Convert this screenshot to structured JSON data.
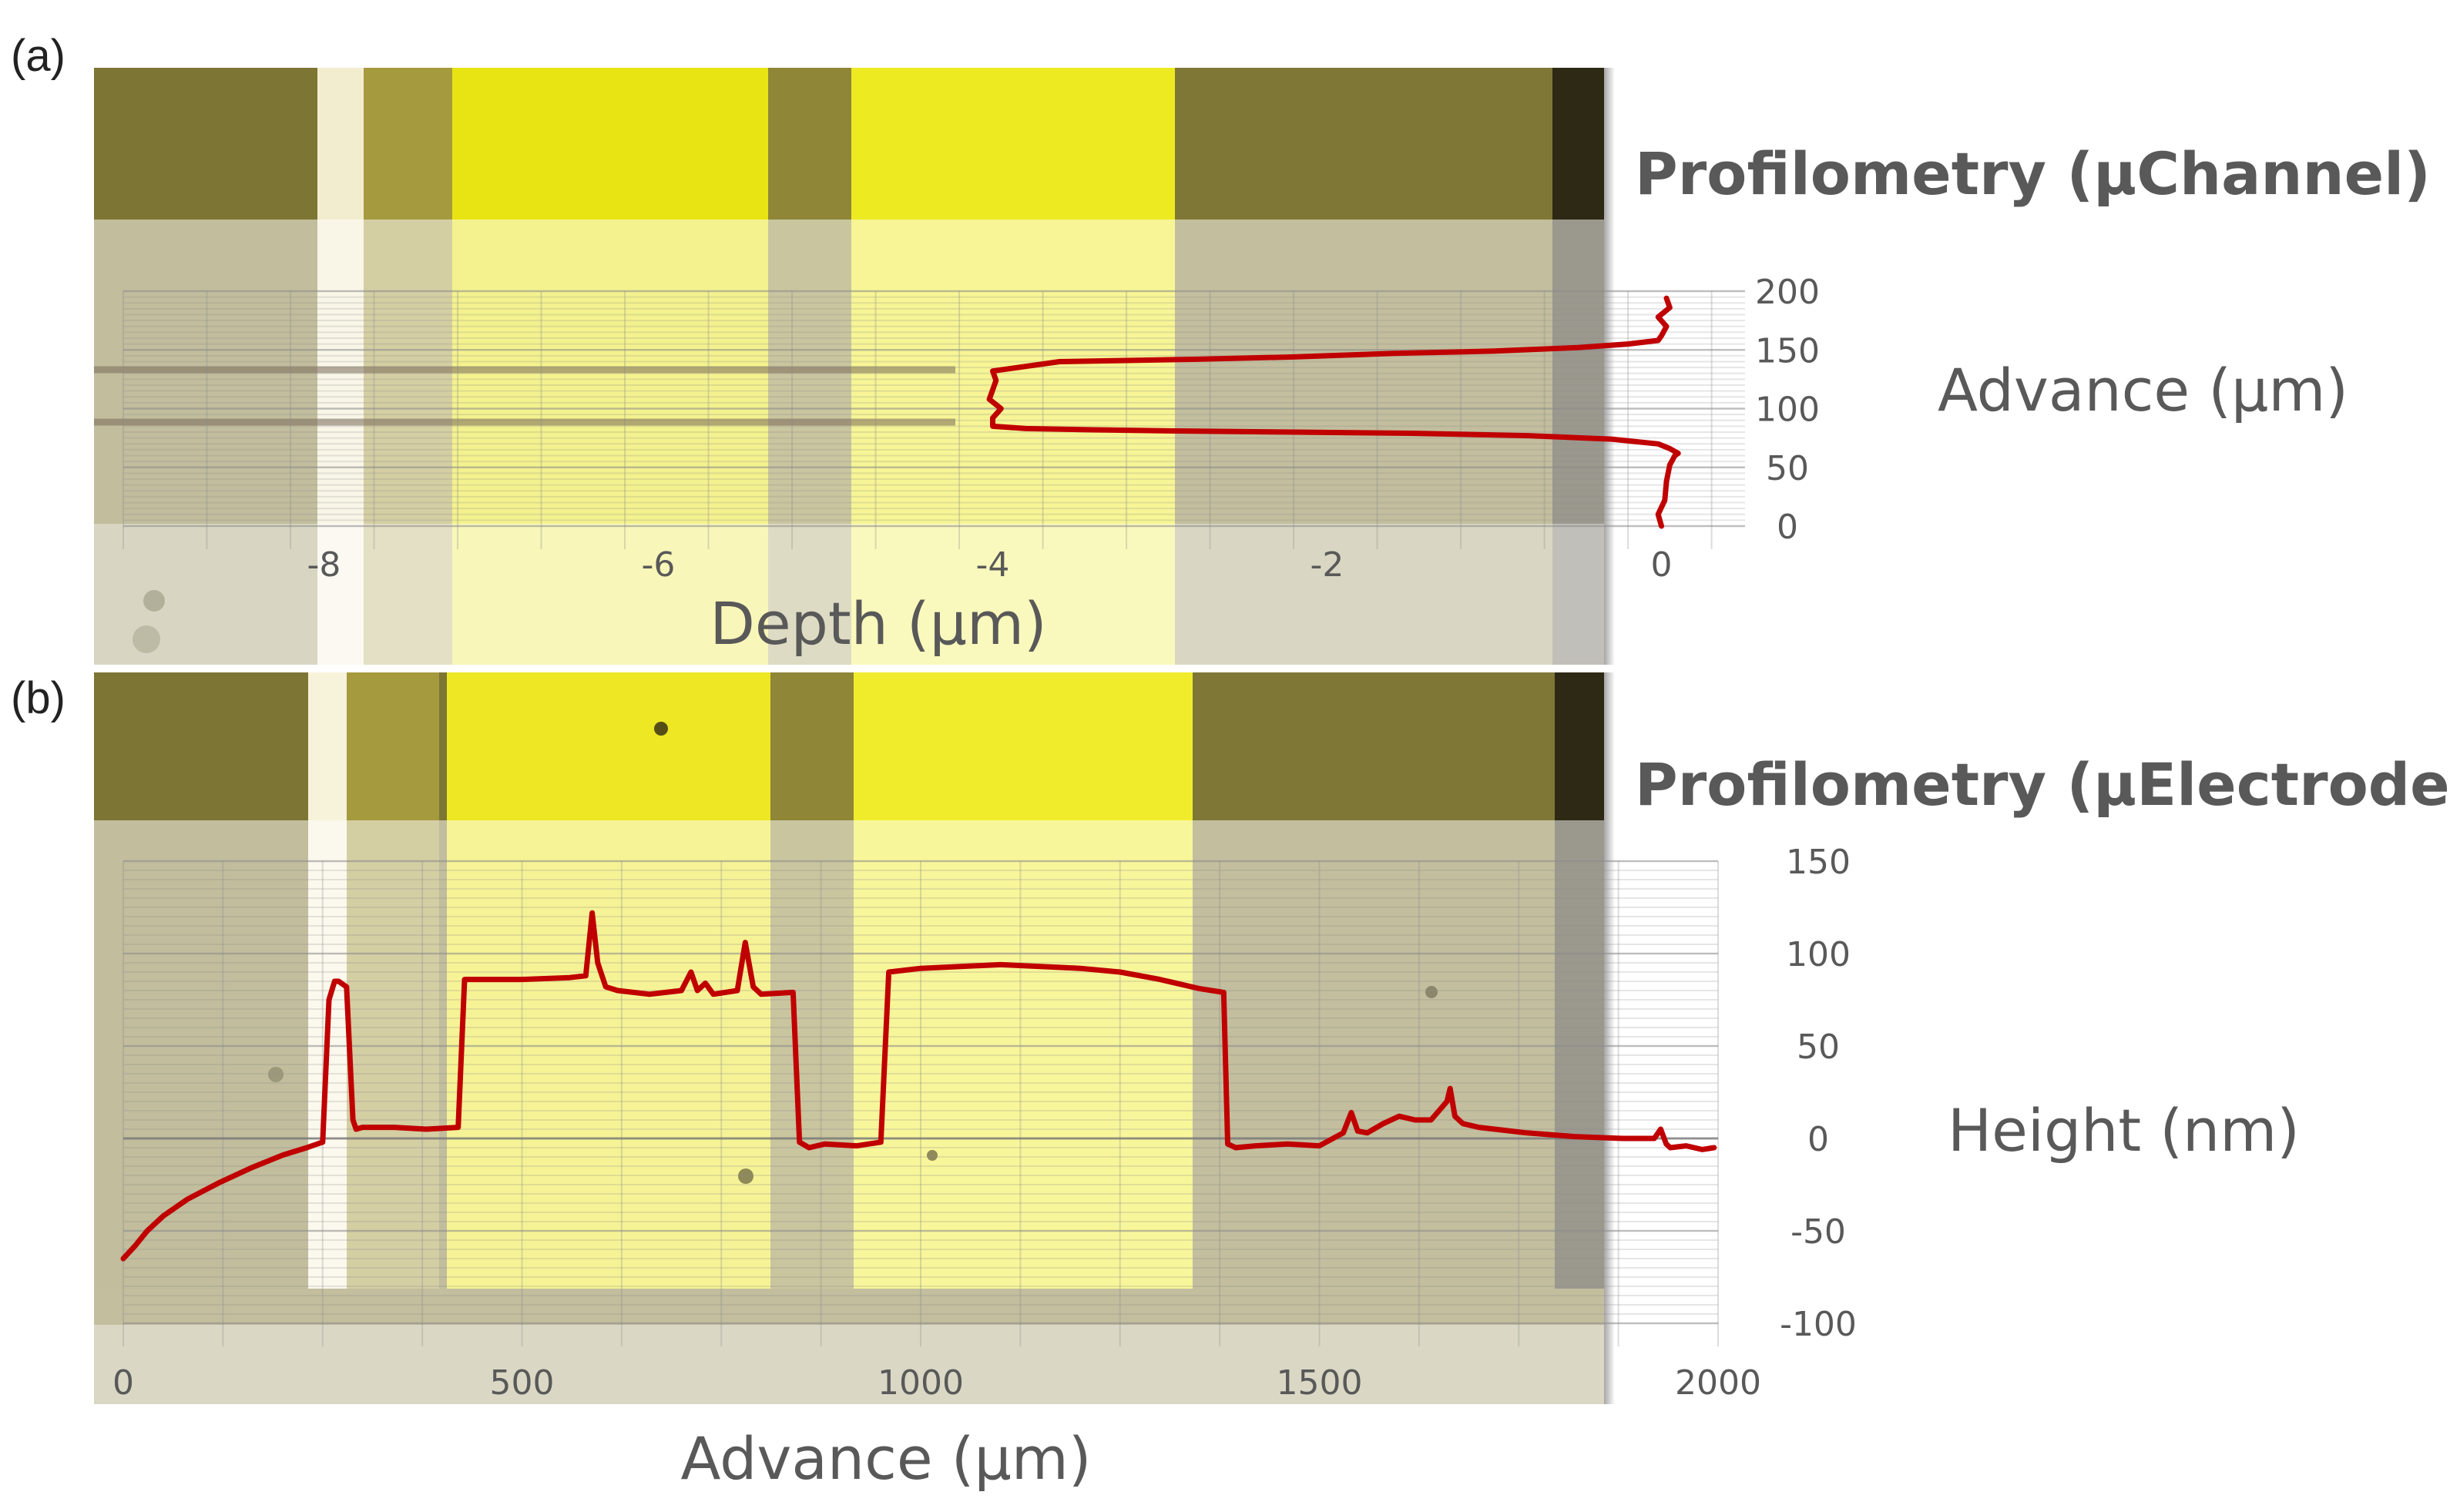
{
  "panels": {
    "a_label": "(a)",
    "b_label": "(b)"
  },
  "colors": {
    "trace": "#c00000",
    "micrograph_dark": "#7d7533",
    "micrograph_yellow": "#e8e414",
    "overlay_white": "#ffffff",
    "label_grey": "#595959"
  },
  "chart_data": [
    {
      "type": "line",
      "title": "Profilometry (µChannel)",
      "xlabel": "Depth (µm)",
      "ylabel": "Advance (µm)",
      "xlim": [
        -9.2,
        0.5
      ],
      "ylim": [
        0,
        200
      ],
      "x_ticks": [
        "-8",
        "-6",
        "-4",
        "-2",
        "0"
      ],
      "y_ticks": [
        "0",
        "50",
        "100",
        "150",
        "200"
      ],
      "grid": true,
      "series": [
        {
          "x": [
            0.0,
            -0.02,
            0.02,
            0.03,
            0.05,
            0.08,
            0.1,
            0.05,
            -0.02,
            -0.3,
            -0.8,
            -1.5,
            -2.2,
            -2.9,
            -3.4,
            -3.8,
            -4.0,
            -4.0,
            -3.95,
            -4.02,
            -4.0,
            -3.98,
            -4.0,
            -3.6,
            -3.2,
            -2.8,
            -2.2,
            -1.6,
            -1.0,
            -0.5,
            -0.2,
            -0.02,
            0.0,
            0.03,
            -0.02,
            0.05,
            0.03
          ],
          "y": [
            0,
            10,
            22,
            38,
            52,
            60,
            62,
            66,
            70,
            74,
            77,
            79,
            80,
            81,
            82,
            83,
            85,
            92,
            100,
            108,
            116,
            124,
            132,
            140,
            141,
            142,
            144,
            147,
            149,
            152,
            155,
            158,
            162,
            170,
            178,
            186,
            194
          ]
        }
      ]
    },
    {
      "type": "line",
      "title": "Profilometry (µElectrode)",
      "xlabel": "Advance (µm)",
      "ylabel": "Height (nm)",
      "xlim": [
        0,
        2000
      ],
      "ylim": [
        -100,
        150
      ],
      "x_ticks": [
        "0",
        "500",
        "1000",
        "1500",
        "2000"
      ],
      "y_ticks": [
        "-100",
        "-50",
        "0",
        "50",
        "100",
        "150"
      ],
      "grid": true,
      "series": [
        {
          "x": [
            0,
            15,
            30,
            50,
            80,
            120,
            160,
            200,
            230,
            250,
            258,
            265,
            270,
            280,
            288,
            292,
            300,
            340,
            380,
            420,
            428,
            440,
            500,
            560,
            580,
            588,
            595,
            605,
            620,
            660,
            700,
            712,
            720,
            730,
            740,
            770,
            780,
            790,
            800,
            840,
            848,
            860,
            880,
            920,
            950,
            960,
            1000,
            1050,
            1100,
            1150,
            1200,
            1250,
            1300,
            1350,
            1380,
            1385,
            1395,
            1420,
            1460,
            1500,
            1530,
            1540,
            1548,
            1560,
            1580,
            1600,
            1620,
            1640,
            1660,
            1664,
            1670,
            1680,
            1700,
            1760,
            1820,
            1880,
            1920,
            1928,
            1935,
            1940,
            1960,
            1980,
            1995
          ],
          "y": [
            -65,
            -58,
            -50,
            -42,
            -33,
            -24,
            -16,
            -9,
            -5,
            -2,
            75,
            85,
            85,
            82,
            10,
            5,
            6,
            6,
            5,
            6,
            86,
            86,
            86,
            87,
            88,
            122,
            95,
            82,
            80,
            78,
            80,
            90,
            80,
            84,
            78,
            80,
            106,
            82,
            78,
            79,
            -2,
            -5,
            -3,
            -4,
            -2,
            90,
            92,
            93,
            94,
            93,
            92,
            90,
            86,
            81,
            79,
            -3,
            -5,
            -4,
            -3,
            -4,
            3,
            14,
            4,
            3,
            8,
            12,
            10,
            10,
            20,
            27,
            12,
            8,
            6,
            3,
            1,
            0,
            0,
            5,
            -3,
            -5,
            -4,
            -6,
            -5
          ]
        }
      ]
    }
  ]
}
